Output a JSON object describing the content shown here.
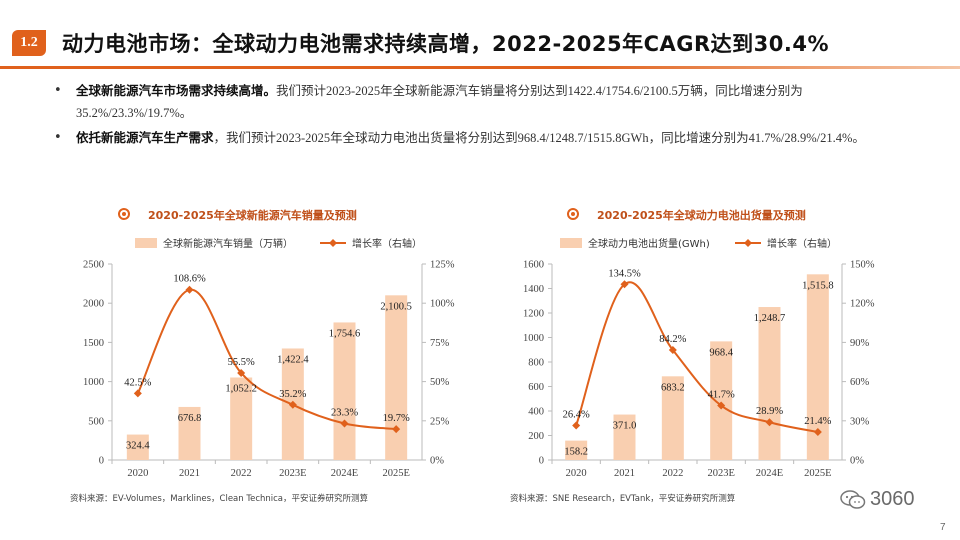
{
  "header": {
    "badge": "1.2",
    "title": "动力电池市场：全球动力电池需求持续高增，2022-2025年CAGR达到30.4%"
  },
  "bullets": [
    {
      "bold": "全球新能源汽车市场需求持续高增。",
      "text": "我们预计2023-2025年全球新能源汽车销量将分别达到1422.4/1754.6/2100.5万辆，同比增速分别为35.2%/23.3%/19.7%。"
    },
    {
      "bold": "依托新能源汽车生产需求",
      "text": "，我们预计2023-2025年全球动力电池出货量将分别达到968.4/1248.7/1515.8GWh，同比增速分别为41.7%/28.9%/21.4%。"
    }
  ],
  "chart_data": [
    {
      "type": "bar",
      "title": "2020-2025年全球新能源汽车销量及预测",
      "categories": [
        "2020",
        "2021",
        "2022",
        "2023E",
        "2024E",
        "2025E"
      ],
      "series": [
        {
          "name": "全球新能源汽车销量（万辆）",
          "type": "bar",
          "axis": "left",
          "values": [
            324.4,
            676.8,
            1052.2,
            1422.4,
            1754.6,
            2100.5
          ],
          "labels": [
            "324.4",
            "676.8",
            "1,052.2",
            "1,422.4",
            "1,754.6",
            "2,100.5"
          ]
        },
        {
          "name": "增长率（右轴）",
          "type": "line",
          "axis": "right",
          "values": [
            42.5,
            108.6,
            55.5,
            35.2,
            23.3,
            19.7
          ],
          "labels": [
            "42.5%",
            "108.6%",
            "55.5%",
            "35.2%",
            "23.3%",
            "19.7%"
          ]
        }
      ],
      "ylim": [
        0,
        2500
      ],
      "yticks": [
        "0",
        "500",
        "1000",
        "1500",
        "2000",
        "2500"
      ],
      "y2lim": [
        0,
        125
      ],
      "y2ticks": [
        "0%",
        "25%",
        "50%",
        "75%",
        "100%",
        "125%"
      ],
      "source": "资料来源：EV-Volumes，Marklines，Clean Technica，平安证券研究所测算"
    },
    {
      "type": "bar",
      "title": "2020-2025年全球动力电池出货量及预测",
      "categories": [
        "2020",
        "2021",
        "2022",
        "2023E",
        "2024E",
        "2025E"
      ],
      "series": [
        {
          "name": "全球动力电池出货量(GWh)",
          "type": "bar",
          "axis": "left",
          "values": [
            158.2,
            371.0,
            683.2,
            968.4,
            1248.7,
            1515.8
          ],
          "labels": [
            "158.2",
            "371.0",
            "683.2",
            "968.4",
            "1,248.7",
            "1,515.8"
          ]
        },
        {
          "name": "增长率（右轴）",
          "type": "line",
          "axis": "right",
          "values": [
            26.4,
            134.5,
            84.2,
            41.7,
            28.9,
            21.4
          ],
          "labels": [
            "26.4%",
            "134.5%",
            "84.2%",
            "41.7%",
            "28.9%",
            "21.4%"
          ]
        }
      ],
      "ylim": [
        0,
        1600
      ],
      "yticks": [
        "0",
        "200",
        "400",
        "600",
        "800",
        "1000",
        "1200",
        "1400",
        "1600"
      ],
      "y2lim": [
        0,
        150
      ],
      "y2ticks": [
        "0%",
        "30%",
        "60%",
        "90%",
        "120%",
        "150%"
      ],
      "source": "资料来源：SNE Research，EVTank，平安证券研究所测算"
    }
  ],
  "colors": {
    "accent": "#e0611c",
    "bar": "#f9cfb0",
    "line": "#e0611c"
  },
  "footer": {
    "watermark": "3060",
    "page": "7"
  }
}
